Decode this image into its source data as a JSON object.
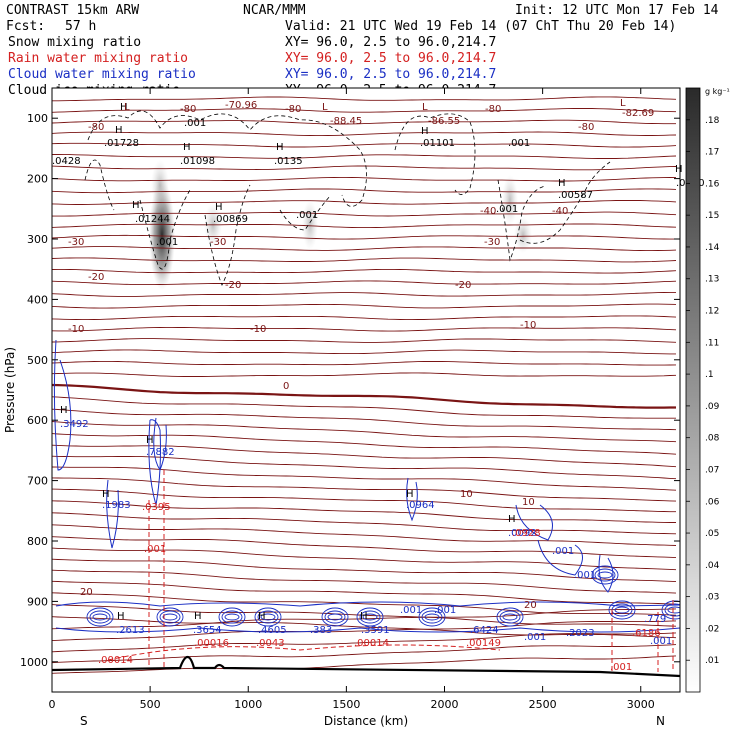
{
  "header": {
    "model": "CONTRAST 15km ARW",
    "org": "NCAR/MMM",
    "init": "Init: 12 UTC Mon 17 Feb 14",
    "fcst_label": "Fcst:",
    "fcst_value": "57 h",
    "valid": "Valid: 21 UTC Wed 19 Feb 14 (07 ChT Thu 20 Feb 14)",
    "fields": [
      {
        "name": "Snow mixing ratio",
        "xy": "XY=  96.0,  2.5 to  96.0,214.7",
        "color": "#000000"
      },
      {
        "name": "Rain water mixing ratio",
        "xy": "XY=  96.0,  2.5 to  96.0,214.7",
        "color": "#d42020"
      },
      {
        "name": "Cloud water mixing ratio",
        "xy": "XY=  96.0,  2.5 to  96.0,214.7",
        "color": "#1b2fc4"
      },
      {
        "name": "Cloud ice mixing ratio",
        "xy": "XY=  96.0,  2.5 to  96.0,214.7",
        "color": "#000000"
      }
    ]
  },
  "colorbar": {
    "unit": "g kg⁻¹",
    "levels": [
      ".18",
      ".17",
      ".16",
      ".15",
      ".14",
      ".13",
      ".12",
      ".11",
      ".1",
      ".09",
      ".08",
      ".07",
      ".06",
      ".05",
      ".04",
      ".03",
      ".02",
      ".01"
    ]
  },
  "chart_data": {
    "type": "contour cross-section",
    "xlabel": "Distance (km)",
    "ylabel": "Pressure (hPa)",
    "xlim": [
      0,
      3200
    ],
    "ylim": [
      1050,
      50
    ],
    "xticks": [
      "0",
      "500",
      "1000",
      "1500",
      "2000",
      "2500",
      "3000"
    ],
    "yticks": [
      "100",
      "200",
      "300",
      "400",
      "500",
      "600",
      "700",
      "800",
      "900",
      "1000"
    ],
    "x_end_labels": {
      "left": "S",
      "right": "N"
    },
    "temperature_labels": [
      "-80",
      "-70.96",
      "-80",
      "-80",
      "-80",
      "-80",
      "-88.45",
      "-86.55",
      "-82.69",
      "-40",
      "-40",
      "-30",
      "-30",
      "-30",
      "-20",
      "-20",
      "-20",
      "-10",
      "-10",
      "-10",
      "0",
      "10",
      "10",
      "20",
      "20"
    ],
    "snow_labels": [
      ".001",
      ".01728",
      ".01098",
      ".0135",
      ".01101",
      ".001",
      ".00587",
      ".0000",
      ".0428",
      ".01244",
      ".00869",
      ".001",
      ".001",
      ".001"
    ],
    "cloud_water_labels": [
      ".3492",
      ".7882",
      ".1983",
      ".0964",
      ".0092",
      ".001",
      ".001",
      ".2613",
      ".3654",
      ".4605",
      ".383",
      ".3591",
      ".001",
      ".001",
      ".6424",
      ".001",
      ".2023",
      ".779",
      ".001"
    ],
    "rain_labels": [
      ".0395",
      ".0928",
      ".001",
      ".00014",
      ".00016",
      ".0043",
      ".00014",
      ".00149",
      ".6186",
      ".001"
    ],
    "h_markers": [
      "H",
      "H",
      "H",
      "H",
      "H",
      "H",
      "H",
      "H",
      "H",
      "H",
      "H",
      "H",
      "H",
      "H",
      "H",
      "H",
      "H",
      "H"
    ],
    "l_markers": [
      "L",
      "L",
      "L",
      "L"
    ]
  }
}
